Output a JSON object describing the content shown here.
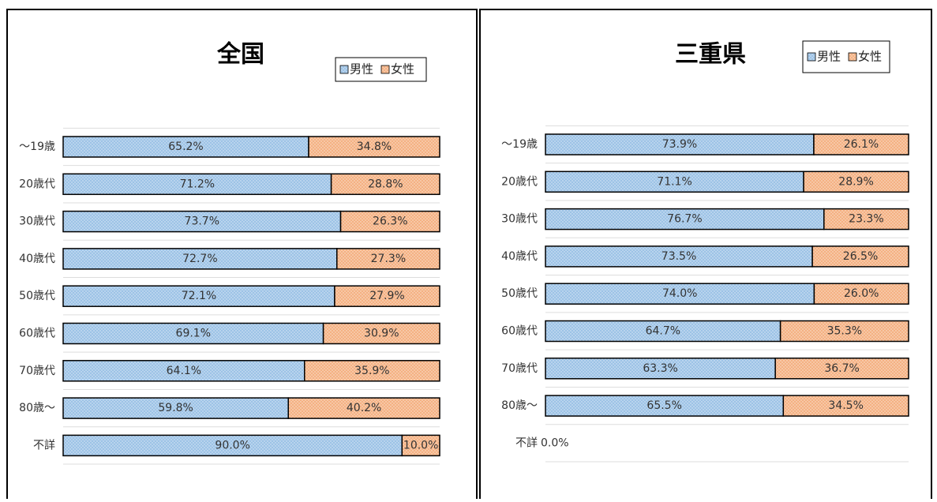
{
  "chart_data": [
    {
      "type": "bar",
      "orientation": "horizontal",
      "stacked": true,
      "title": "全国",
      "categories": [
        "～19歳",
        "20歳代",
        "30歳代",
        "40歳代",
        "50歳代",
        "60歳代",
        "70歳代",
        "80歳～",
        "不詳"
      ],
      "series": [
        {
          "name": "男性",
          "color": "#9dc3e6",
          "values": [
            65.2,
            71.2,
            73.7,
            72.7,
            72.1,
            69.1,
            64.1,
            59.8,
            90.0
          ],
          "value_labels": [
            "65.2%",
            "71.2%",
            "73.7%",
            "72.7%",
            "72.1%",
            "69.1%",
            "64.1%",
            "59.8%",
            "90.0%"
          ]
        },
        {
          "name": "女性",
          "color": "#f4b183",
          "values": [
            34.8,
            28.8,
            26.3,
            27.3,
            27.9,
            30.9,
            35.9,
            40.2,
            10.0
          ],
          "value_labels": [
            "34.8%",
            "28.8%",
            "26.3%",
            "27.3%",
            "27.9%",
            "30.9%",
            "35.9%",
            "40.2%",
            "10.0%"
          ]
        }
      ],
      "xlim": [
        0,
        100
      ],
      "legend": "top-right"
    },
    {
      "type": "bar",
      "orientation": "horizontal",
      "stacked": true,
      "title": "三重県",
      "categories": [
        "～19歳",
        "20歳代",
        "30歳代",
        "40歳代",
        "50歳代",
        "60歳代",
        "70歳代",
        "80歳～",
        "不詳"
      ],
      "series": [
        {
          "name": "男性",
          "color": "#9dc3e6",
          "values": [
            73.9,
            71.1,
            76.7,
            73.5,
            74.0,
            64.7,
            63.3,
            65.5,
            0
          ],
          "value_labels": [
            "73.9%",
            "71.1%",
            "76.7%",
            "73.5%",
            "74.0%",
            "64.7%",
            "63.3%",
            "65.5%",
            "0.0%"
          ]
        },
        {
          "name": "女性",
          "color": "#f4b183",
          "values": [
            26.1,
            28.9,
            23.3,
            26.5,
            26.0,
            35.3,
            36.7,
            34.5,
            null
          ],
          "value_labels": [
            "26.1%",
            "28.9%",
            "23.3%",
            "26.5%",
            "26.0%",
            "35.3%",
            "36.7%",
            "34.5%",
            null
          ]
        }
      ],
      "xlim": [
        0,
        100
      ],
      "legend": "top-right"
    }
  ]
}
